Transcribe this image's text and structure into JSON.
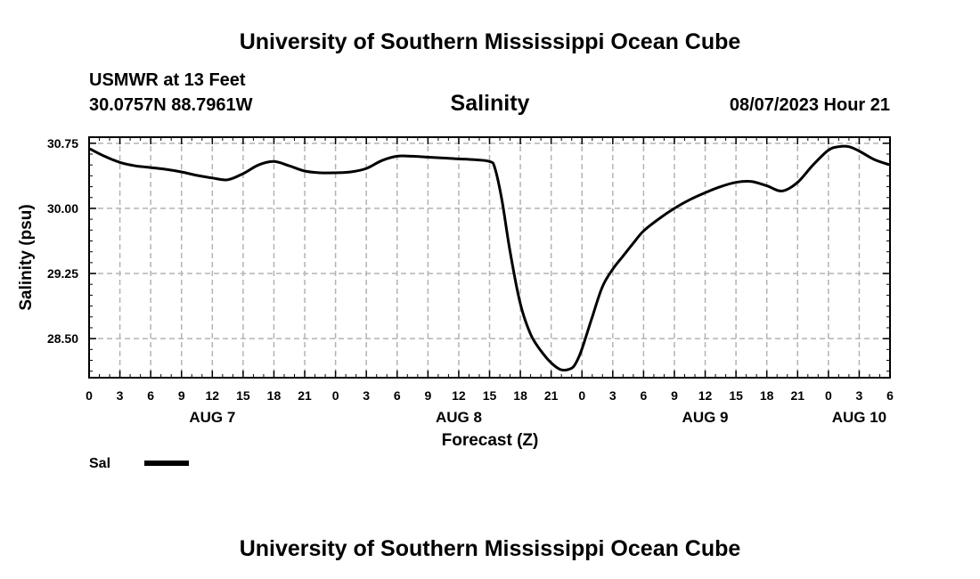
{
  "header": {
    "title": "University of Southern Mississippi Ocean Cube",
    "station": "USMWR at 13 Feet",
    "coords": "30.0757N  88.7961W",
    "variable": "Salinity",
    "datetime": "08/07/2023 Hour 21"
  },
  "footer": {
    "title": "University of Southern Mississippi Ocean Cube"
  },
  "legend": {
    "label": "Sal"
  },
  "colors": {
    "line": "#000000",
    "grid": "#b3b3b3"
  },
  "chart_data": {
    "type": "line",
    "title": "Salinity",
    "xlabel": "Forecast (Z)",
    "ylabel": "Salinity (psu)",
    "xlim": [
      0,
      78
    ],
    "ylim": [
      28.05,
      30.82
    ],
    "y_ticks": [
      28.5,
      29.25,
      30.0,
      30.75
    ],
    "y_tick_labels": [
      "28.50",
      "29.25",
      "30.00",
      "30.75"
    ],
    "x_ticks": [
      0,
      3,
      6,
      9,
      12,
      15,
      18,
      21,
      24,
      27,
      30,
      33,
      36,
      39,
      42,
      45,
      48,
      51,
      54,
      57,
      60,
      63,
      66,
      69,
      72,
      75,
      78
    ],
    "x_tick_labels": [
      "0",
      "3",
      "6",
      "9",
      "12",
      "15",
      "18",
      "21",
      "0",
      "3",
      "6",
      "9",
      "12",
      "15",
      "18",
      "21",
      "0",
      "3",
      "6",
      "9",
      "12",
      "15",
      "18",
      "21",
      "0",
      "3",
      "6"
    ],
    "day_labels": [
      {
        "x": 12,
        "label": "AUG 7"
      },
      {
        "x": 36,
        "label": "AUG 8"
      },
      {
        "x": 60,
        "label": "AUG 9"
      },
      {
        "x": 75,
        "label": "AUG 10"
      }
    ],
    "grid": true,
    "legend_position": "bottom-left",
    "series": [
      {
        "name": "Sal",
        "x": [
          0,
          1.5,
          3,
          4.5,
          6,
          7.5,
          9,
          10.5,
          12,
          13.5,
          15,
          16.5,
          18,
          19.5,
          21,
          22.5,
          24,
          25.5,
          27,
          28.5,
          30,
          31.5,
          33,
          34.5,
          36,
          37.5,
          39,
          39.5,
          40.2,
          41,
          42,
          43,
          44,
          45,
          46,
          47,
          47.5,
          48,
          49,
          50,
          51,
          52,
          53,
          54,
          55.5,
          57,
          58.5,
          60,
          61.5,
          63,
          64.5,
          66,
          67.5,
          69,
          70.5,
          72,
          73,
          74,
          75,
          76.5,
          78
        ],
        "y": [
          30.69,
          30.6,
          30.53,
          30.49,
          30.47,
          30.45,
          30.42,
          30.38,
          30.35,
          30.33,
          30.4,
          30.5,
          30.54,
          30.49,
          30.43,
          30.41,
          30.41,
          30.42,
          30.46,
          30.55,
          30.6,
          30.6,
          30.59,
          30.58,
          30.57,
          30.56,
          30.54,
          30.47,
          30.1,
          29.5,
          28.9,
          28.55,
          28.36,
          28.22,
          28.14,
          28.16,
          28.24,
          28.38,
          28.75,
          29.1,
          29.3,
          29.45,
          29.6,
          29.74,
          29.88,
          30.0,
          30.1,
          30.18,
          30.25,
          30.3,
          30.31,
          30.26,
          30.2,
          30.3,
          30.5,
          30.67,
          30.71,
          30.71,
          30.66,
          30.56,
          30.5
        ]
      }
    ]
  }
}
